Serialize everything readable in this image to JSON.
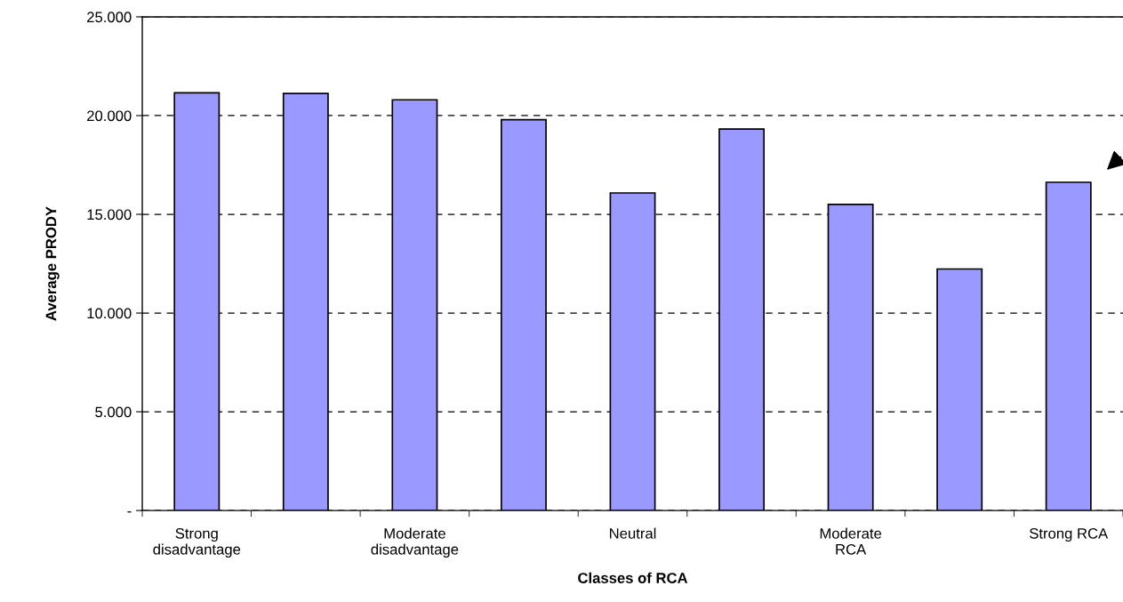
{
  "chart_data": {
    "type": "bar",
    "xlabel": "Classes of RCA",
    "ylabel": "Average PRODY",
    "categories": [
      "Strong\ndisadvantage",
      null,
      "Moderate\ndisadvantage",
      null,
      "Neutral",
      null,
      "Moderate\nRCA",
      null,
      "Strong RCA"
    ],
    "values": [
      21150,
      21120,
      20800,
      19790,
      16080,
      19320,
      15500,
      12230,
      16620
    ],
    "color": "#9999ff",
    "ylim": [
      0,
      25000
    ],
    "yticks": [
      {
        "value": 0,
        "label": "-"
      },
      {
        "value": 5000,
        "label": "5.000"
      },
      {
        "value": 10000,
        "label": "10.000"
      },
      {
        "value": 15000,
        "label": "15.000"
      },
      {
        "value": 20000,
        "label": "20.000"
      },
      {
        "value": 25000,
        "label": "25.000"
      }
    ],
    "grid": "y",
    "legend": false
  }
}
